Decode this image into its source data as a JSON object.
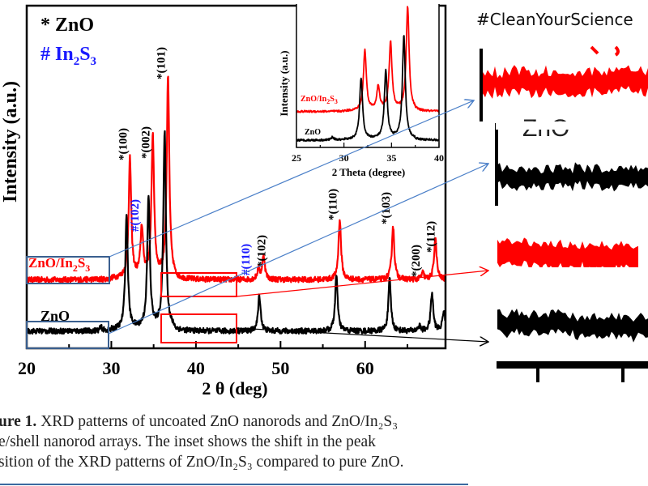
{
  "hashtag": "#CleanYourScience",
  "caption": {
    "line1_bold": "ure 1.",
    "line1": " XRD patterns of uncoated ZnO nanorods and ZnO/In₂S₃",
    "line2": "e/shell nanorod arrays. The inset shows the shift in the peak",
    "line3": "sition of the XRD patterns of ZnO/In₂S₃ compared to pure ZnO."
  },
  "colors": {
    "zno": "#000000",
    "zno_in2s3": "#ff0000",
    "in2s3_label": "#1a1aff",
    "zoom_box_blue": "#3a5f8f",
    "zoom_box_red": "#ff0000",
    "arrow_blue": "#4a7fc8"
  },
  "chart_data": [
    {
      "type": "line",
      "title": "",
      "xlabel": "2 θ (deg)",
      "ylabel": "Intensity (a.u.)",
      "xlim": [
        20,
        69.5
      ],
      "ylim": [
        0,
        100
      ],
      "xticks": [
        20,
        30,
        40,
        50,
        60
      ],
      "xtick_labels": [
        "20",
        "30",
        "40",
        "50",
        "60"
      ],
      "legend": {
        "placement": "top-left",
        "entries": [
          {
            "symbol": "*",
            "text": "ZnO"
          },
          {
            "symbol": "#",
            "text": "In2S3"
          }
        ]
      },
      "series": [
        {
          "name": "ZnO/In2S3",
          "color": "#ff0000",
          "baseline": 20,
          "peaks": [
            [
              32.2,
              34.5
            ],
            [
              33.6,
              14
            ],
            [
              34.9,
              41
            ],
            [
              36.7,
              58
            ],
            [
              47.4,
              3
            ],
            [
              48.0,
              7
            ],
            [
              57.0,
              17.5
            ],
            [
              63.3,
              15.5
            ],
            [
              66.8,
              2
            ],
            [
              68.3,
              12
            ]
          ]
        },
        {
          "name": "ZnO",
          "color": "#000000",
          "baseline": 5,
          "peaks": [
            [
              28.8,
              1
            ],
            [
              31.8,
              33
            ],
            [
              34.4,
              38
            ],
            [
              36.3,
              57
            ],
            [
              47.5,
              10.5
            ],
            [
              56.6,
              16
            ],
            [
              62.9,
              15
            ],
            [
              66.4,
              1.5
            ],
            [
              67.9,
              11
            ],
            [
              69.3,
              6
            ]
          ]
        }
      ],
      "peak_labels": [
        {
          "text": "*(100)",
          "two_theta": 32.2,
          "color": "#000000"
        },
        {
          "text": "#(102)",
          "two_theta": 33.6,
          "color": "#1a1aff"
        },
        {
          "text": "*(002)",
          "two_theta": 34.9,
          "color": "#000000"
        },
        {
          "text": "*(101)",
          "two_theta": 36.7,
          "color": "#000000"
        },
        {
          "text": "#(110)",
          "two_theta": 47.4,
          "color": "#1a1aff"
        },
        {
          "text": "*(102)",
          "two_theta": 48.0,
          "color": "#000000"
        },
        {
          "text": "*(110)",
          "two_theta": 57.0,
          "color": "#000000"
        },
        {
          "text": "*(103)",
          "two_theta": 63.3,
          "color": "#000000"
        },
        {
          "text": "*(200)",
          "two_theta": 66.8,
          "color": "#000000"
        },
        {
          "text": "*(112)",
          "two_theta": 68.3,
          "color": "#000000"
        }
      ]
    },
    {
      "type": "line",
      "title": "inset",
      "xlabel": "2 Theta (degree)",
      "ylabel": "Intensity (a.u.)",
      "xlim": [
        25,
        40
      ],
      "ylim": [
        0,
        100
      ],
      "xticks": [
        25,
        30,
        35,
        40
      ],
      "xtick_labels": [
        "25",
        "30",
        "35",
        "40"
      ],
      "series": [
        {
          "name": "ZnO/In2S3",
          "color": "#ff0000",
          "baseline": 25,
          "peaks": [
            [
              32.2,
              42
            ],
            [
              33.6,
              16
            ],
            [
              34.9,
              47
            ],
            [
              36.7,
              72
            ]
          ]
        },
        {
          "name": "ZnO",
          "color": "#000000",
          "baseline": 5,
          "peaks": [
            [
              28.8,
              2
            ],
            [
              31.8,
              43
            ],
            [
              34.4,
              47
            ],
            [
              36.3,
              72
            ]
          ]
        }
      ]
    }
  ],
  "zoom_panels": [
    {
      "series": "ZnO/In2S3",
      "region": "20-30",
      "fragment_text": ""
    },
    {
      "series": "ZnO",
      "region": "20-30",
      "fragment_text": "ZnO"
    },
    {
      "series": "ZnO/In2S3",
      "region": "37-46.5",
      "fragment_text": ""
    },
    {
      "series": "ZnO",
      "region": "37-46.5",
      "fragment_text": ""
    }
  ]
}
